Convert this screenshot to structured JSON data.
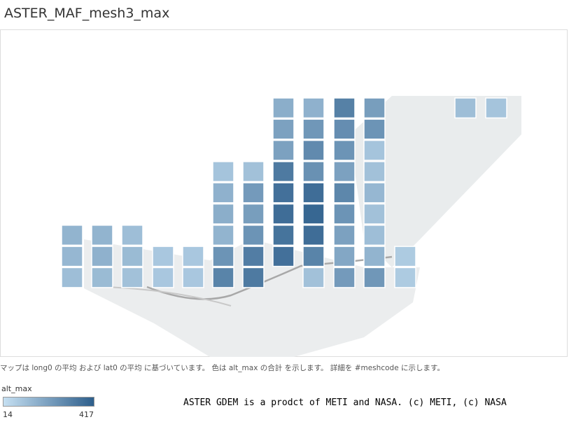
{
  "title": "ASTER_MAF_mesh3_max",
  "caption": "マップは long0 の平均 および lat0 の平均 に基づいています。 色は alt_max の合計 を示します。 詳細を #meshcode に示します。",
  "credit": "ASTER GDEM is a prodct of METI and NASA. (c) METI, (c) NASA",
  "legend": {
    "title": "alt_max",
    "min": 14,
    "max": 417,
    "color_low": "#c6e0f2",
    "color_high": "#2d5e8b"
  },
  "map": {
    "columns": [
      [
        150,
        140,
        120
      ],
      [
        150,
        160,
        130
      ],
      [
        120,
        130,
        110
      ],
      [
        90,
        90
      ],
      [
        90,
        90
      ],
      [
        100,
        160,
        170,
        150,
        250,
        300
      ],
      [
        110,
        230,
        220,
        250,
        320,
        330
      ],
      [
        170,
        210,
        210,
        330,
        360,
        370,
        350,
        360
      ],
      [
        160,
        240,
        280,
        260,
        370,
        390,
        370,
        300,
        110
      ],
      [
        310,
        270,
        250,
        210,
        290,
        250,
        210,
        190,
        230
      ],
      [
        220,
        250,
        100,
        110,
        140,
        110,
        120,
        150,
        240
      ],
      [
        80,
        80
      ],
      [
        120
      ],
      [
        100
      ]
    ]
  }
}
